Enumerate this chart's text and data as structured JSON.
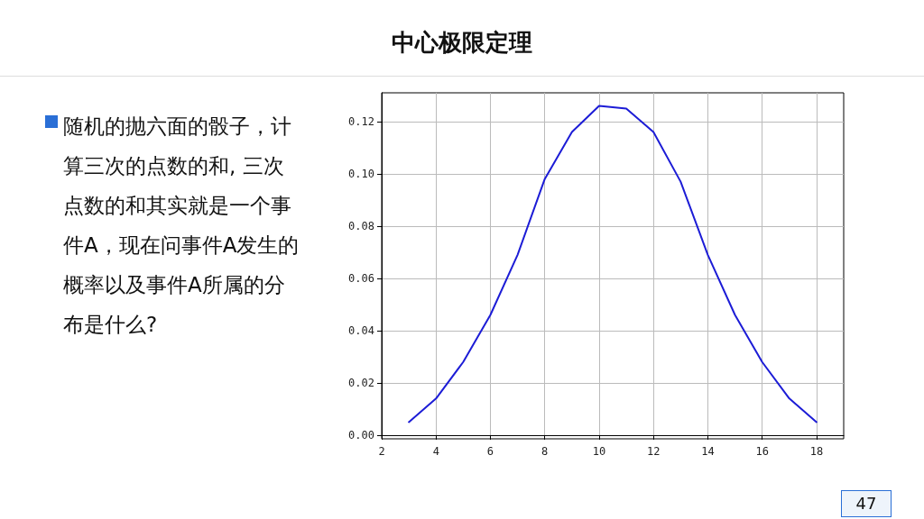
{
  "chart_data": {
    "type": "line",
    "title": "中心极限定理",
    "annotations": [
      "随机的抛六面的骰子，计算三次的点数的和, 三次点数的和其实就是一个事件A，现在问事件A发生的概率以及事件A所属的分布是什么?",
      "47"
    ],
    "x": [
      3,
      4,
      5,
      6,
      7,
      8,
      9,
      10,
      11,
      12,
      13,
      14,
      15,
      16,
      17,
      18
    ],
    "series": [
      {
        "color": "#1c1cd6",
        "values": [
          0.005,
          0.014,
          0.028,
          0.046,
          0.069,
          0.098,
          0.116,
          0.126,
          0.125,
          0.116,
          0.097,
          0.069,
          0.046,
          0.028,
          0.014,
          0.005
        ]
      }
    ],
    "xlim": [
      2,
      19
    ],
    "xticks": [
      2,
      4,
      6,
      8,
      10,
      12,
      14,
      16,
      18
    ],
    "ylim": [
      -0.0014,
      0.131
    ],
    "yticks": [
      {
        "value": 0,
        "label": "0.00"
      },
      {
        "value": 0.02,
        "label": "0.02"
      },
      {
        "value": 0.04,
        "label": "0.04"
      },
      {
        "value": 0.06,
        "label": "0.06"
      },
      {
        "value": 0.08,
        "label": "0.08"
      },
      {
        "value": 0.1,
        "label": "0.10"
      },
      {
        "value": 0.12,
        "label": "0.12"
      }
    ],
    "grid": true,
    "marker": "none",
    "line_style": "solid"
  }
}
